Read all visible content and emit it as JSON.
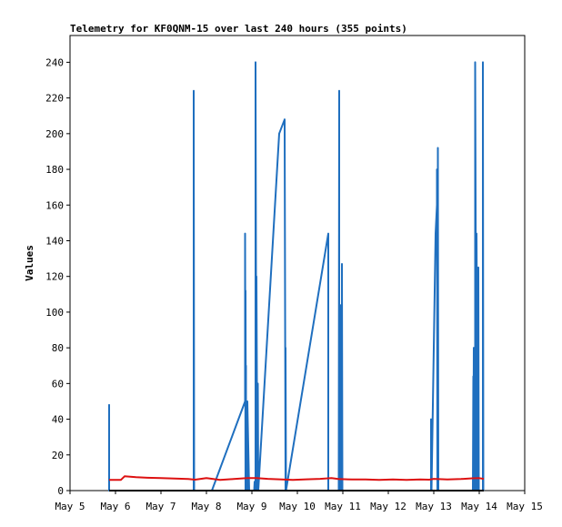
{
  "chart_data": {
    "type": "line",
    "title": "Telemetry for KF0QNM-15 over last 240 hours (355 points)",
    "xlabel": "",
    "ylabel": "Values",
    "xlim": [
      "May 5",
      "May 15"
    ],
    "ylim": [
      0,
      255
    ],
    "x_tick_labels": [
      "May 5",
      "May 6",
      "May 7",
      "May 8",
      "May 9",
      "May 10",
      "May 11",
      "May 12",
      "May 13",
      "May 14",
      "May 15"
    ],
    "y_ticks": [
      0,
      20,
      40,
      60,
      80,
      100,
      120,
      140,
      160,
      180,
      200,
      220,
      240
    ],
    "grid": false,
    "legend": "none",
    "colors": {
      "series_1": "#1f6fbf",
      "series_2": "#dd1111",
      "series_3": "#000000",
      "frame": "#000000",
      "ticks": "#000000"
    },
    "series": [
      {
        "x": [
          5.86,
          5.86,
          5.86,
          7.72,
          7.72,
          7.72,
          7.73,
          7.73,
          8.12,
          8.85,
          8.85,
          8.86,
          8.86,
          8.87,
          8.87,
          8.87,
          8.89,
          8.89,
          8.89,
          8.9,
          8.9,
          8.94,
          9.05,
          9.06,
          9.08,
          9.08,
          9.1,
          9.1,
          9.12,
          9.13,
          9.13,
          9.14,
          9.14,
          9.6,
          9.72,
          9.74,
          9.74,
          9.75,
          9.75,
          10.68,
          10.68,
          10.69,
          10.69,
          10.91,
          10.92,
          10.92,
          10.95,
          10.96,
          10.96,
          10.98,
          10.98,
          10.99,
          10.99,
          12.93,
          12.94,
          12.94,
          12.95,
          13.04,
          13.07,
          13.07,
          13.08,
          13.09,
          13.09,
          13.1,
          13.1,
          13.11,
          13.11,
          13.86,
          13.87,
          13.87,
          13.88,
          13.88,
          13.9,
          13.9,
          13.91,
          13.91,
          13.94,
          13.94,
          13.95,
          13.96,
          13.96,
          13.97,
          13.98,
          13.99,
          14.08,
          14.08,
          14.09
        ],
        "values": [
          0,
          48,
          0,
          0,
          56,
          224,
          0,
          0,
          0,
          50,
          144,
          0,
          112,
          0,
          70,
          0,
          50,
          40,
          0,
          0,
          50,
          0,
          0,
          5,
          0,
          240,
          0,
          120,
          0,
          0,
          60,
          0,
          0,
          200,
          208,
          0,
          80,
          0,
          0,
          144,
          0,
          0,
          0,
          0,
          224,
          0,
          0,
          104,
          0,
          0,
          127,
          0,
          0,
          0,
          0,
          40,
          0,
          144,
          160,
          180,
          0,
          0,
          192,
          0,
          0,
          0,
          0,
          0,
          64,
          0,
          80,
          0,
          0,
          64,
          0,
          240,
          0,
          144,
          96,
          110,
          120,
          0,
          125,
          0,
          0,
          240,
          0
        ]
      },
      {
        "x": [
          5.86,
          6.12,
          6.2,
          6.45,
          6.7,
          7.0,
          7.3,
          7.6,
          7.75,
          8.0,
          8.3,
          8.6,
          8.9,
          9.1,
          9.35,
          9.6,
          9.9,
          10.2,
          10.5,
          10.75,
          10.9,
          11.2,
          11.5,
          11.8,
          12.1,
          12.4,
          12.7,
          12.9,
          13.0,
          13.3,
          13.6,
          13.85,
          14.0,
          14.1
        ],
        "values": [
          6,
          6,
          8,
          7.5,
          7.2,
          7.0,
          6.8,
          6.5,
          6.1,
          7.0,
          6.0,
          6.5,
          7.0,
          7.0,
          6.6,
          6.3,
          6.0,
          6.3,
          6.6,
          7.0,
          6.5,
          6.2,
          6.2,
          6.0,
          6.2,
          6.0,
          6.2,
          6.1,
          6.6,
          6.2,
          6.5,
          6.9,
          7.0,
          6.6
        ]
      },
      {
        "x": [
          5.86,
          14.1
        ],
        "values": [
          0,
          0
        ]
      }
    ]
  }
}
